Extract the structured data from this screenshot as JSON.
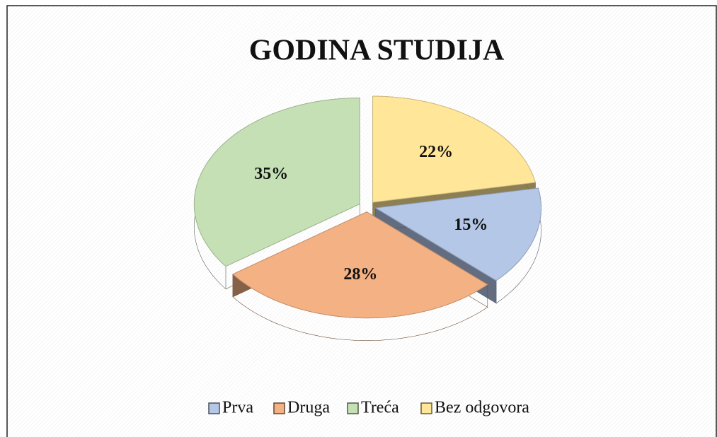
{
  "chart_data": {
    "type": "pie",
    "title": "GODINA STUDIJA",
    "categories": [
      "Prva",
      "Druga",
      "Treća",
      "Bez odgovora"
    ],
    "values": [
      15,
      28,
      35,
      22
    ],
    "value_labels": [
      "15%",
      "28%",
      "35%",
      "22%"
    ],
    "colors": [
      "#b4c7e7",
      "#f4b183",
      "#c5e0b4",
      "#ffe699"
    ],
    "legend": "bottom"
  }
}
